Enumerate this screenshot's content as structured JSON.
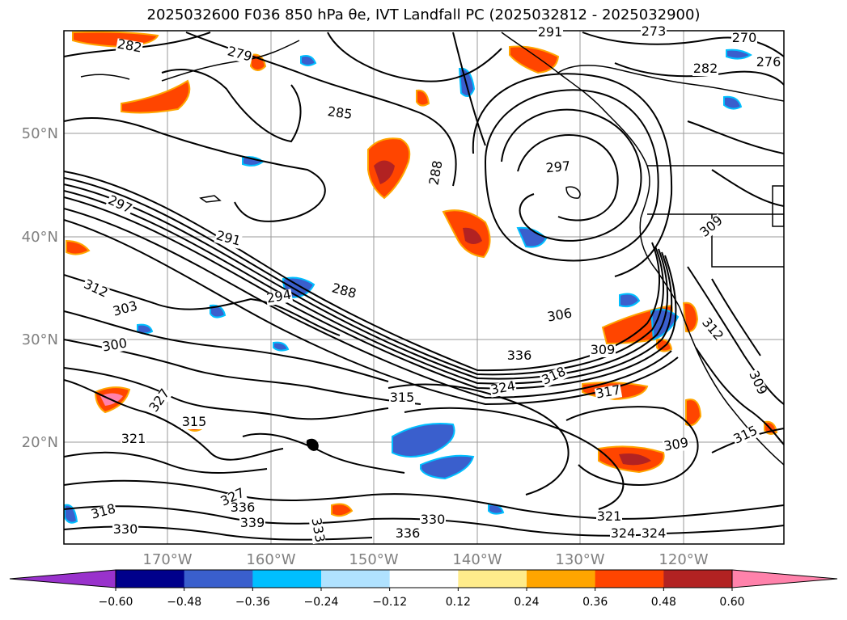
{
  "title": "2025032600 F036 850 hPa θe, IVT Landfall PC (2025032812 - 2025032900)",
  "latitude_labels": [
    "50°N",
    "40°N",
    "30°N",
    "20°N"
  ],
  "longitude_labels": [
    "170°W",
    "160°W",
    "150°W",
    "140°W",
    "130°W",
    "120°W"
  ],
  "contour_labels": [
    "282",
    "279",
    "285",
    "276",
    "270",
    "273",
    "282",
    "288",
    "291",
    "297",
    "297",
    "291",
    "288",
    "294",
    "312",
    "303",
    "306",
    "300",
    "309",
    "315",
    "324",
    "318",
    "317",
    "309",
    "315",
    "312",
    "309",
    "321",
    "324",
    "327",
    "336",
    "339",
    "333",
    "336",
    "330",
    "330",
    "318",
    "309",
    "327",
    "321",
    "324",
    "336",
    "315"
  ],
  "colorbar": {
    "ticks": [
      "−0.60",
      "−0.48",
      "−0.36",
      "−0.24",
      "−0.12",
      "0.12",
      "0.24",
      "0.36",
      "0.48",
      "0.60"
    ],
    "colors": [
      "#9932cc",
      "#00008b",
      "#3a5fcd",
      "#00bfff",
      "#b0e2ff",
      "#ffffff",
      "#ffec8b",
      "#ffa500",
      "#ff4500",
      "#b22222",
      "#ff82ab"
    ]
  }
}
